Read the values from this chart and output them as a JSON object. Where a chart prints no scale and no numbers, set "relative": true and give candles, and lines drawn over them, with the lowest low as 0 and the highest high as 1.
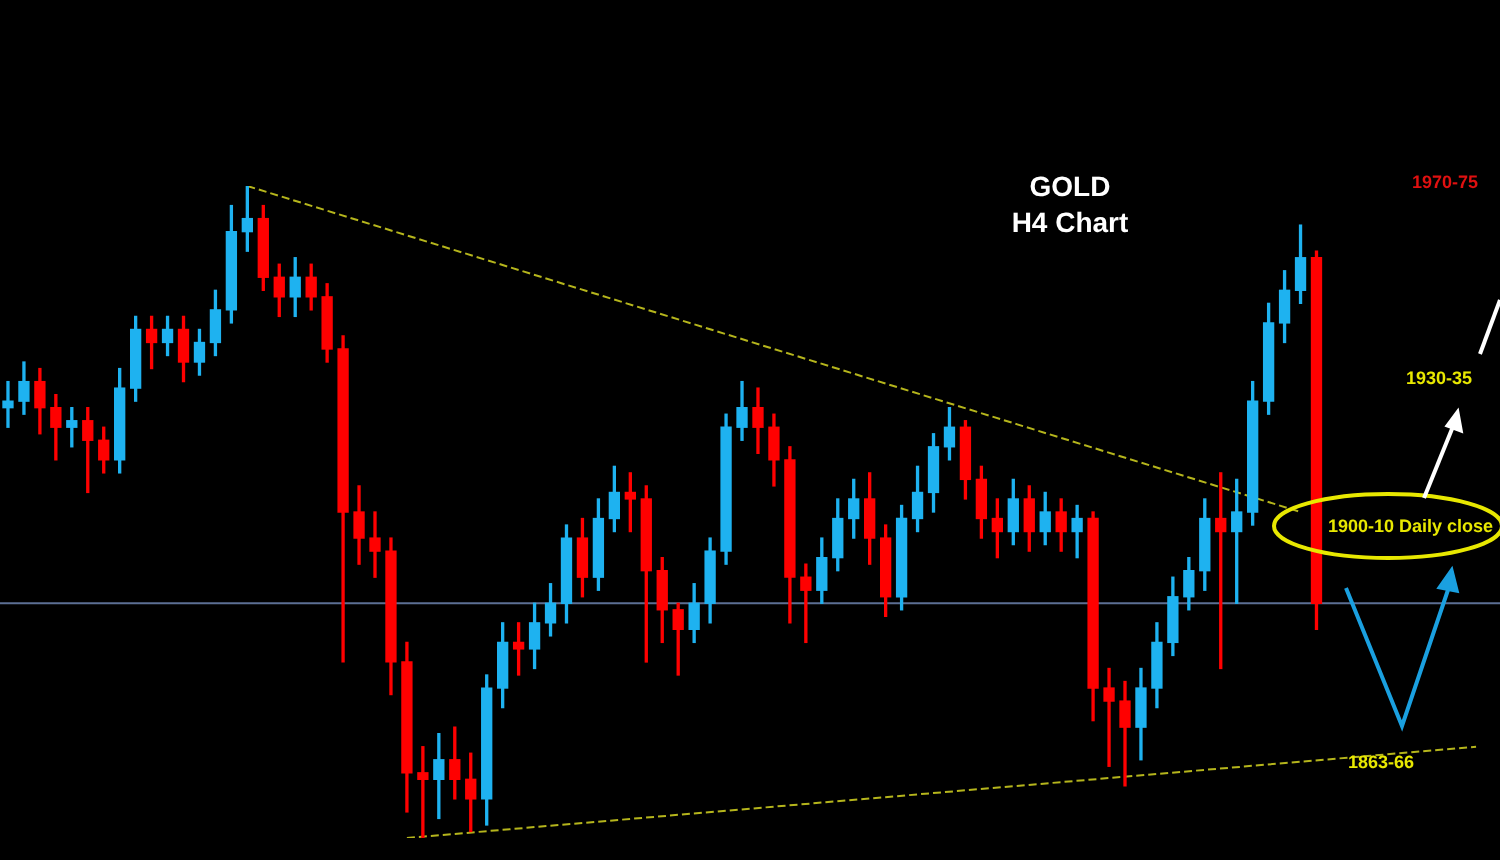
{
  "chart_data": {
    "type": "candlestick",
    "title": "GOLD",
    "subtitle": "H4 Chart",
    "relative": true,
    "tick_labels": false,
    "legend": false,
    "categories": [
      null,
      null,
      null,
      null,
      null,
      null,
      null,
      null,
      null,
      null,
      null,
      null,
      null,
      null,
      null,
      null,
      null,
      null,
      null,
      null,
      null,
      null,
      null,
      null,
      null,
      null,
      null,
      null,
      null,
      null,
      null,
      null,
      null,
      null,
      null,
      null,
      null,
      null,
      null,
      null,
      null,
      null,
      null,
      null,
      null,
      null,
      null,
      null,
      null,
      null,
      null,
      null,
      null,
      null,
      null,
      null,
      null,
      null,
      null,
      null,
      null,
      null,
      null,
      null,
      null,
      null,
      null,
      null,
      null,
      null,
      null,
      null,
      null,
      null,
      null,
      null,
      null,
      null,
      null,
      null,
      null,
      null,
      null,
      null,
      null,
      null,
      null,
      null,
      null,
      null,
      null,
      null,
      null,
      null
    ],
    "colors": [
      "#1eb2f0",
      "#1eb2f0",
      "#ff0000",
      "#ff0000",
      "#1eb2f0",
      "#ff0000",
      "#ff0000",
      "#1eb2f0",
      "#1eb2f0",
      "#ff0000",
      "#1eb2f0",
      "#ff0000",
      "#1eb2f0",
      "#1eb2f0",
      "#1eb2f0",
      "#1eb2f0",
      "#ff0000",
      "#ff0000",
      "#1eb2f0",
      "#ff0000",
      "#ff0000",
      "#ff0000",
      "#ff0000",
      "#ff0000",
      "#ff0000",
      "#ff0000",
      "#ff0000",
      "#1eb2f0",
      "#ff0000",
      "#ff0000",
      "#1eb2f0",
      "#1eb2f0",
      "#ff0000",
      "#1eb2f0",
      "#1eb2f0",
      "#1eb2f0",
      "#ff0000",
      "#1eb2f0",
      "#1eb2f0",
      "#ff0000",
      "#ff0000",
      "#ff0000",
      "#ff0000",
      "#1eb2f0",
      "#1eb2f0",
      "#1eb2f0",
      "#1eb2f0",
      "#ff0000",
      "#ff0000",
      "#ff0000",
      "#ff0000",
      "#1eb2f0",
      "#1eb2f0",
      "#1eb2f0",
      "#ff0000",
      "#ff0000",
      "#1eb2f0",
      "#1eb2f0",
      "#1eb2f0",
      "#1eb2f0",
      "#ff0000",
      "#ff0000",
      "#ff0000",
      "#1eb2f0",
      "#ff0000",
      "#1eb2f0",
      "#ff0000",
      "#1eb2f0",
      "#ff0000",
      "#ff0000",
      "#ff0000",
      "#1eb2f0",
      "#1eb2f0",
      "#1eb2f0",
      "#1eb2f0",
      "#1eb2f0",
      "#ff0000",
      "#1eb2f0",
      "#1eb2f0",
      "#1eb2f0",
      "#1eb2f0",
      "#1eb2f0",
      "#ff0000",
      null,
      null,
      null,
      null,
      null,
      null,
      null,
      null,
      null,
      null,
      null
    ],
    "ohlc": [
      [
        0.66,
        0.7,
        0.63,
        0.67
      ],
      [
        0.67,
        0.73,
        0.65,
        0.7
      ],
      [
        0.7,
        0.72,
        0.62,
        0.66
      ],
      [
        0.66,
        0.68,
        0.58,
        0.63
      ],
      [
        0.63,
        0.66,
        0.6,
        0.64
      ],
      [
        0.64,
        0.66,
        0.53,
        0.61
      ],
      [
        0.61,
        0.63,
        0.56,
        0.58
      ],
      [
        0.58,
        0.72,
        0.56,
        0.69
      ],
      [
        0.69,
        0.8,
        0.67,
        0.78
      ],
      [
        0.78,
        0.8,
        0.72,
        0.76
      ],
      [
        0.76,
        0.8,
        0.74,
        0.78
      ],
      [
        0.78,
        0.8,
        0.7,
        0.73
      ],
      [
        0.73,
        0.78,
        0.71,
        0.76
      ],
      [
        0.76,
        0.84,
        0.74,
        0.81
      ],
      [
        0.81,
        0.97,
        0.79,
        0.93
      ],
      [
        0.93,
        1.0,
        0.9,
        0.95
      ],
      [
        0.95,
        0.97,
        0.84,
        0.86
      ],
      [
        0.86,
        0.88,
        0.8,
        0.83
      ],
      [
        0.83,
        0.89,
        0.8,
        0.86
      ],
      [
        0.86,
        0.88,
        0.81,
        0.83
      ],
      [
        0.83,
        0.85,
        0.73,
        0.75
      ],
      [
        0.75,
        0.77,
        0.27,
        0.5
      ],
      [
        0.5,
        0.54,
        0.42,
        0.46
      ],
      [
        0.46,
        0.5,
        0.4,
        0.44
      ],
      [
        0.44,
        0.46,
        0.22,
        0.27
      ],
      [
        0.27,
        0.3,
        0.04,
        0.1
      ],
      [
        0.1,
        0.14,
        0.0,
        0.09
      ],
      [
        0.09,
        0.16,
        0.03,
        0.12
      ],
      [
        0.12,
        0.17,
        0.06,
        0.09
      ],
      [
        0.09,
        0.13,
        0.01,
        0.06
      ],
      [
        0.06,
        0.25,
        0.02,
        0.23
      ],
      [
        0.23,
        0.33,
        0.2,
        0.3
      ],
      [
        0.3,
        0.33,
        0.25,
        0.29
      ],
      [
        0.29,
        0.36,
        0.26,
        0.33
      ],
      [
        0.33,
        0.39,
        0.31,
        0.36
      ],
      [
        0.36,
        0.48,
        0.33,
        0.46
      ],
      [
        0.46,
        0.49,
        0.37,
        0.4
      ],
      [
        0.4,
        0.52,
        0.38,
        0.49
      ],
      [
        0.49,
        0.57,
        0.47,
        0.53
      ],
      [
        0.53,
        0.56,
        0.47,
        0.52
      ],
      [
        0.52,
        0.54,
        0.27,
        0.41
      ],
      [
        0.41,
        0.43,
        0.3,
        0.35
      ],
      [
        0.35,
        0.36,
        0.25,
        0.32
      ],
      [
        0.32,
        0.39,
        0.3,
        0.36
      ],
      [
        0.36,
        0.46,
        0.33,
        0.44
      ],
      [
        0.44,
        0.65,
        0.42,
        0.63
      ],
      [
        0.63,
        0.7,
        0.61,
        0.66
      ],
      [
        0.66,
        0.69,
        0.59,
        0.63
      ],
      [
        0.63,
        0.65,
        0.54,
        0.58
      ],
      [
        0.58,
        0.6,
        0.33,
        0.4
      ],
      [
        0.4,
        0.42,
        0.3,
        0.38
      ],
      [
        0.38,
        0.46,
        0.36,
        0.43
      ],
      [
        0.43,
        0.52,
        0.41,
        0.49
      ],
      [
        0.49,
        0.55,
        0.46,
        0.52
      ],
      [
        0.52,
        0.56,
        0.42,
        0.46
      ],
      [
        0.46,
        0.48,
        0.34,
        0.37
      ],
      [
        0.37,
        0.51,
        0.35,
        0.49
      ],
      [
        0.49,
        0.57,
        0.47,
        0.53
      ],
      [
        0.53,
        0.62,
        0.5,
        0.6
      ],
      [
        0.6,
        0.66,
        0.58,
        0.63
      ],
      [
        0.63,
        0.64,
        0.52,
        0.55
      ],
      [
        0.55,
        0.57,
        0.46,
        0.49
      ],
      [
        0.49,
        0.52,
        0.43,
        0.47
      ],
      [
        0.47,
        0.55,
        0.45,
        0.52
      ],
      [
        0.52,
        0.54,
        0.44,
        0.47
      ],
      [
        0.47,
        0.53,
        0.45,
        0.5
      ],
      [
        0.5,
        0.52,
        0.44,
        0.47
      ],
      [
        0.47,
        0.51,
        0.43,
        0.49
      ],
      [
        0.49,
        0.5,
        0.18,
        0.23
      ],
      [
        0.23,
        0.26,
        0.11,
        0.21
      ],
      [
        0.21,
        0.24,
        0.08,
        0.17
      ],
      [
        0.17,
        0.26,
        0.12,
        0.23
      ],
      [
        0.23,
        0.33,
        0.2,
        0.3
      ],
      [
        0.3,
        0.4,
        0.28,
        0.37
      ],
      [
        0.37,
        0.43,
        0.35,
        0.41
      ],
      [
        0.41,
        0.52,
        0.38,
        0.49
      ],
      [
        0.49,
        0.56,
        0.26,
        0.47
      ],
      [
        0.47,
        0.55,
        0.36,
        0.5
      ],
      [
        0.5,
        0.7,
        0.48,
        0.67
      ],
      [
        0.67,
        0.82,
        0.65,
        0.79
      ],
      [
        0.79,
        0.87,
        0.76,
        0.84
      ],
      [
        0.84,
        0.94,
        0.82,
        0.89
      ],
      [
        0.89,
        0.9,
        0.32,
        0.36
      ],
      null,
      null,
      null,
      null,
      null,
      null,
      null,
      null,
      null,
      null,
      null
    ],
    "series": [
      {
        "type": "line",
        "line_style": "dashed",
        "marker": "none",
        "color": "#b5b51c",
        "values": [
          null,
          null,
          null,
          null,
          null,
          null,
          null,
          null,
          null,
          null,
          null,
          null,
          null,
          null,
          null,
          1.0,
          null,
          null,
          null,
          null,
          null,
          null,
          null,
          null,
          null,
          null,
          null,
          null,
          null,
          null,
          null,
          null,
          null,
          null,
          null,
          null,
          null,
          null,
          null,
          null,
          null,
          null,
          null,
          null,
          null,
          null,
          null,
          null,
          null,
          null,
          null,
          null,
          null,
          null,
          null,
          null,
          null,
          null,
          null,
          null,
          null,
          null,
          null,
          null,
          null,
          null,
          null,
          null,
          null,
          null,
          null,
          null,
          null,
          null,
          null,
          null,
          null,
          null,
          null,
          null,
          null,
          0.5,
          null,
          null,
          null,
          null,
          null,
          null,
          null,
          null,
          null,
          null,
          null,
          null
        ]
      },
      {
        "type": "line",
        "line_style": "dashed",
        "marker": "none",
        "color": "#b5b51c",
        "values": [
          null,
          null,
          null,
          null,
          null,
          null,
          null,
          null,
          null,
          null,
          null,
          null,
          null,
          null,
          null,
          null,
          null,
          null,
          null,
          null,
          null,
          null,
          null,
          null,
          null,
          0.0,
          null,
          null,
          null,
          null,
          null,
          null,
          null,
          null,
          null,
          null,
          null,
          null,
          null,
          null,
          null,
          null,
          null,
          null,
          null,
          null,
          null,
          null,
          null,
          null,
          null,
          null,
          null,
          null,
          null,
          null,
          null,
          null,
          null,
          null,
          null,
          null,
          null,
          null,
          null,
          null,
          null,
          null,
          null,
          null,
          null,
          null,
          null,
          null,
          null,
          null,
          null,
          null,
          null,
          null,
          null,
          null,
          null,
          null,
          null,
          null,
          null,
          null,
          null,
          null,
          null,
          null,
          0.14,
          null
        ]
      }
    ],
    "ref_lines": [
      {
        "axis": "y",
        "value": 0.36,
        "color": "#5c6f94"
      }
    ],
    "annotations": [
      "1970-75",
      "1930-35",
      "1900-10 Daily close",
      "1863-66"
    ]
  }
}
